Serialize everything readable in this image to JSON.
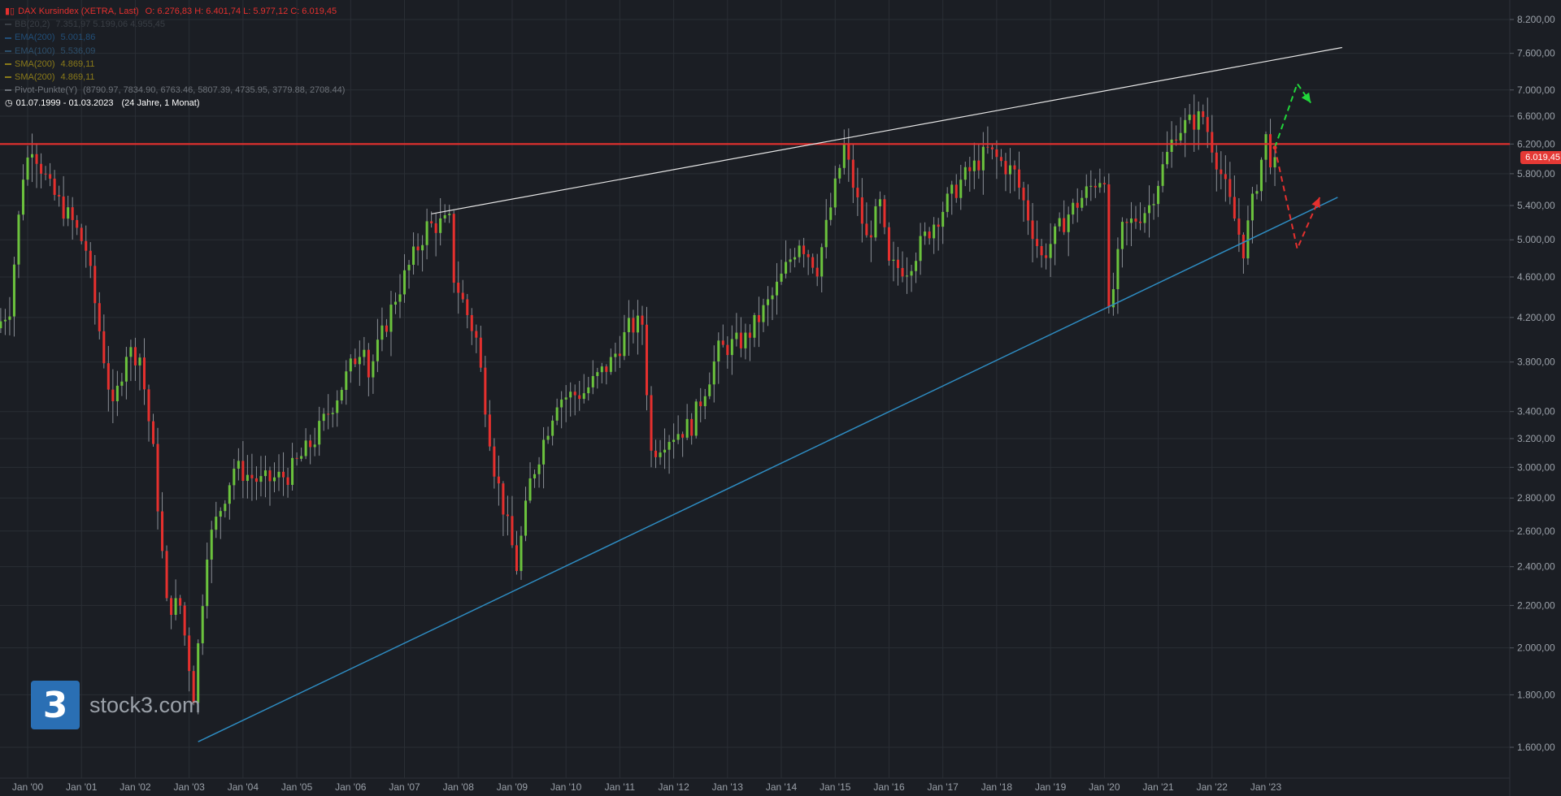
{
  "legend": {
    "main_icon": "candlestick-icon",
    "main_title": "DAX Kursindex (XETRA, Last)",
    "ohlc": "O: 6.276,83  H: 6.401,74  L: 5.977,12  C: 6.019,45",
    "indicators": [
      {
        "label": "BB(20,2)",
        "values": "7.351,97  5.199,06  4.955,45",
        "color": "#3a3f46"
      },
      {
        "label": "EMA(200)",
        "values": "5.001,86",
        "color": "#214e78"
      },
      {
        "label": "EMA(100)",
        "values": "5.536,09",
        "color": "#2d4f6b"
      },
      {
        "label": "SMA(200)",
        "values": "4.869,11",
        "color": "#8a7a19"
      },
      {
        "label": "SMA(200)",
        "values": "4.869,11",
        "color": "#8a7a19"
      },
      {
        "label": "Pivot-Punkte(Y)",
        "values": "(8790.97,  7834.90,  6763.46,  5807.39,  4735.95,  3779.88,  2708.44)",
        "color": "#6e737a"
      }
    ],
    "range_icon": "clock-icon",
    "date_range": "01.07.1999 - 01.03.2023",
    "duration": "(24 Jahre, 1 Monat)"
  },
  "logo": {
    "glyph": "3",
    "text": "stock3.com"
  },
  "price_tag": "6.019,45",
  "colors": {
    "up": "#6bc23d",
    "down": "#e5302e",
    "resistance": "#e5302e",
    "upper_trend": "#e6e6e6",
    "lower_trend": "#2e8bc0",
    "scenario_up": "#21d63a",
    "scenario_down": "#e5302e"
  },
  "chart_data": {
    "type": "candlestick",
    "title": "DAX Kursindex (XETRA, Last)",
    "y_scale": "log",
    "ylim": [
      1500,
      8500
    ],
    "y_ticks": [
      1600,
      1800,
      2000,
      2200,
      2400,
      2600,
      2800,
      3000,
      3200,
      3400,
      3800,
      4200,
      4600,
      5000,
      5400,
      5800,
      6200,
      6600,
      7000,
      7600,
      8200
    ],
    "y_tick_labels": [
      "1.600,00",
      "1.800,00",
      "2.000,00",
      "2.200,00",
      "2.400,00",
      "2.600,00",
      "2.800,00",
      "3.000,00",
      "3.200,00",
      "3.400,00",
      "3.800,00",
      "4.200,00",
      "4.600,00",
      "5.000,00",
      "5.400,00",
      "5.800,00",
      "6.200,00",
      "6.600,00",
      "7.000,00",
      "7.600,00",
      "8.200,00"
    ],
    "x_range": [
      "1999-07",
      "2024-06"
    ],
    "x_ticks": [
      "Jan '00",
      "Jan '01",
      "Jan '02",
      "Jan '03",
      "Jan '04",
      "Jan '05",
      "Jan '06",
      "Jan '07",
      "Jan '08",
      "Jan '09",
      "Jan '10",
      "Jan '11",
      "Jan '12",
      "Jan '13",
      "Jan '14",
      "Jan '15",
      "Jan '16",
      "Jan '17",
      "Jan '18",
      "Jan '19",
      "Jan '20",
      "Jan '21",
      "Jan '22",
      "Jan '23"
    ],
    "last_close": 6019.45,
    "anchors": [
      [
        "1999-07",
        4100
      ],
      [
        "1999-10",
        4300
      ],
      [
        "2000-01",
        5800
      ],
      [
        "2000-03",
        6200
      ],
      [
        "2000-07",
        5600
      ],
      [
        "2000-12",
        5200
      ],
      [
        "2001-03",
        4900
      ],
      [
        "2001-09",
        3400
      ],
      [
        "2001-12",
        3900
      ],
      [
        "2002-03",
        3850
      ],
      [
        "2002-06",
        3100
      ],
      [
        "2002-09",
        2200
      ],
      [
        "2002-12",
        2200
      ],
      [
        "2003-03",
        1800
      ],
      [
        "2003-06",
        2500
      ],
      [
        "2003-12",
        3000
      ],
      [
        "2004-06",
        2900
      ],
      [
        "2004-12",
        2950
      ],
      [
        "2005-06",
        3200
      ],
      [
        "2005-12",
        3600
      ],
      [
        "2006-05",
        4000
      ],
      [
        "2006-06",
        3700
      ],
      [
        "2006-12",
        4400
      ],
      [
        "2007-07",
        5150
      ],
      [
        "2007-12",
        5200
      ],
      [
        "2008-01",
        4600
      ],
      [
        "2008-06",
        4000
      ],
      [
        "2008-10",
        3000
      ],
      [
        "2009-03",
        2400
      ],
      [
        "2009-06",
        2900
      ],
      [
        "2009-12",
        3500
      ],
      [
        "2010-06",
        3550
      ],
      [
        "2010-12",
        3800
      ],
      [
        "2011-04",
        4100
      ],
      [
        "2011-07",
        4150
      ],
      [
        "2011-09",
        3100
      ],
      [
        "2011-12",
        3200
      ],
      [
        "2012-06",
        3300
      ],
      [
        "2012-12",
        3900
      ],
      [
        "2013-06",
        4000
      ],
      [
        "2013-12",
        4400
      ],
      [
        "2014-06",
        5000
      ],
      [
        "2014-10",
        4700
      ],
      [
        "2015-04",
        6150
      ],
      [
        "2015-09",
        5000
      ],
      [
        "2015-12",
        5400
      ],
      [
        "2016-02",
        4700
      ],
      [
        "2016-06",
        4700
      ],
      [
        "2016-12",
        5200
      ],
      [
        "2017-06",
        5700
      ],
      [
        "2017-12",
        6100
      ],
      [
        "2018-06",
        5800
      ],
      [
        "2018-12",
        4800
      ],
      [
        "2019-06",
        5300
      ],
      [
        "2019-12",
        5700
      ],
      [
        "2020-02",
        5800
      ],
      [
        "2020-03",
        4200
      ],
      [
        "2020-06",
        5100
      ],
      [
        "2020-12",
        5400
      ],
      [
        "2021-06",
        6400
      ],
      [
        "2021-12",
        6600
      ],
      [
        "2022-03",
        6000
      ],
      [
        "2022-09",
        4900
      ],
      [
        "2022-12",
        5700
      ],
      [
        "2023-02",
        6277
      ],
      [
        "2023-03",
        6019.45
      ]
    ],
    "lines": {
      "resistance": {
        "y": 6200
      },
      "upper_trendline": [
        [
          "2007-07",
          5300
        ],
        [
          "2024-06",
          7700
        ]
      ],
      "lower_trendline": [
        [
          "2003-03",
          1620
        ],
        [
          "2024-05",
          5500
        ]
      ]
    },
    "scenarios": {
      "bullish": [
        [
          "2023-03",
          6150
        ],
        [
          "2023-08",
          7100
        ],
        [
          "2023-11",
          6800
        ]
      ],
      "bearish": [
        [
          "2023-03",
          6150
        ],
        [
          "2023-08",
          4900
        ],
        [
          "2024-01",
          5500
        ]
      ]
    }
  }
}
